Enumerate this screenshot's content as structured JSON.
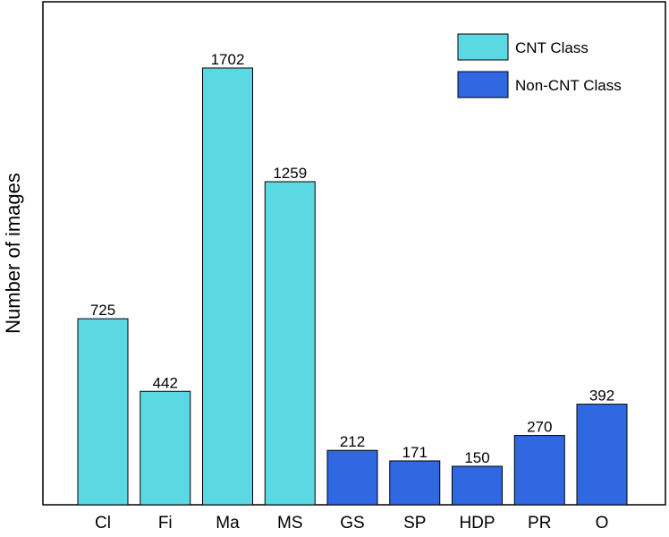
{
  "chart_data": {
    "type": "bar",
    "categories": [
      "Cl",
      "Fi",
      "Ma",
      "MS",
      "GS",
      "SP",
      "HDP",
      "PR",
      "O"
    ],
    "values": [
      725,
      442,
      1702,
      1259,
      212,
      171,
      150,
      270,
      392
    ],
    "groups": [
      "CNT Class",
      "CNT Class",
      "CNT Class",
      "CNT Class",
      "Non-CNT Class",
      "Non-CNT Class",
      "Non-CNT Class",
      "Non-CNT Class",
      "Non-CNT Class"
    ],
    "legend": [
      {
        "name": "CNT Class",
        "color": "#5ad9e3"
      },
      {
        "name": "Non-CNT Class",
        "color": "#2f68e0"
      }
    ],
    "legend_position": "top-right",
    "xlabel": "",
    "ylabel": "Number of images",
    "ylim": [
      0,
      1960
    ],
    "grid": false,
    "data_labels": true
  }
}
